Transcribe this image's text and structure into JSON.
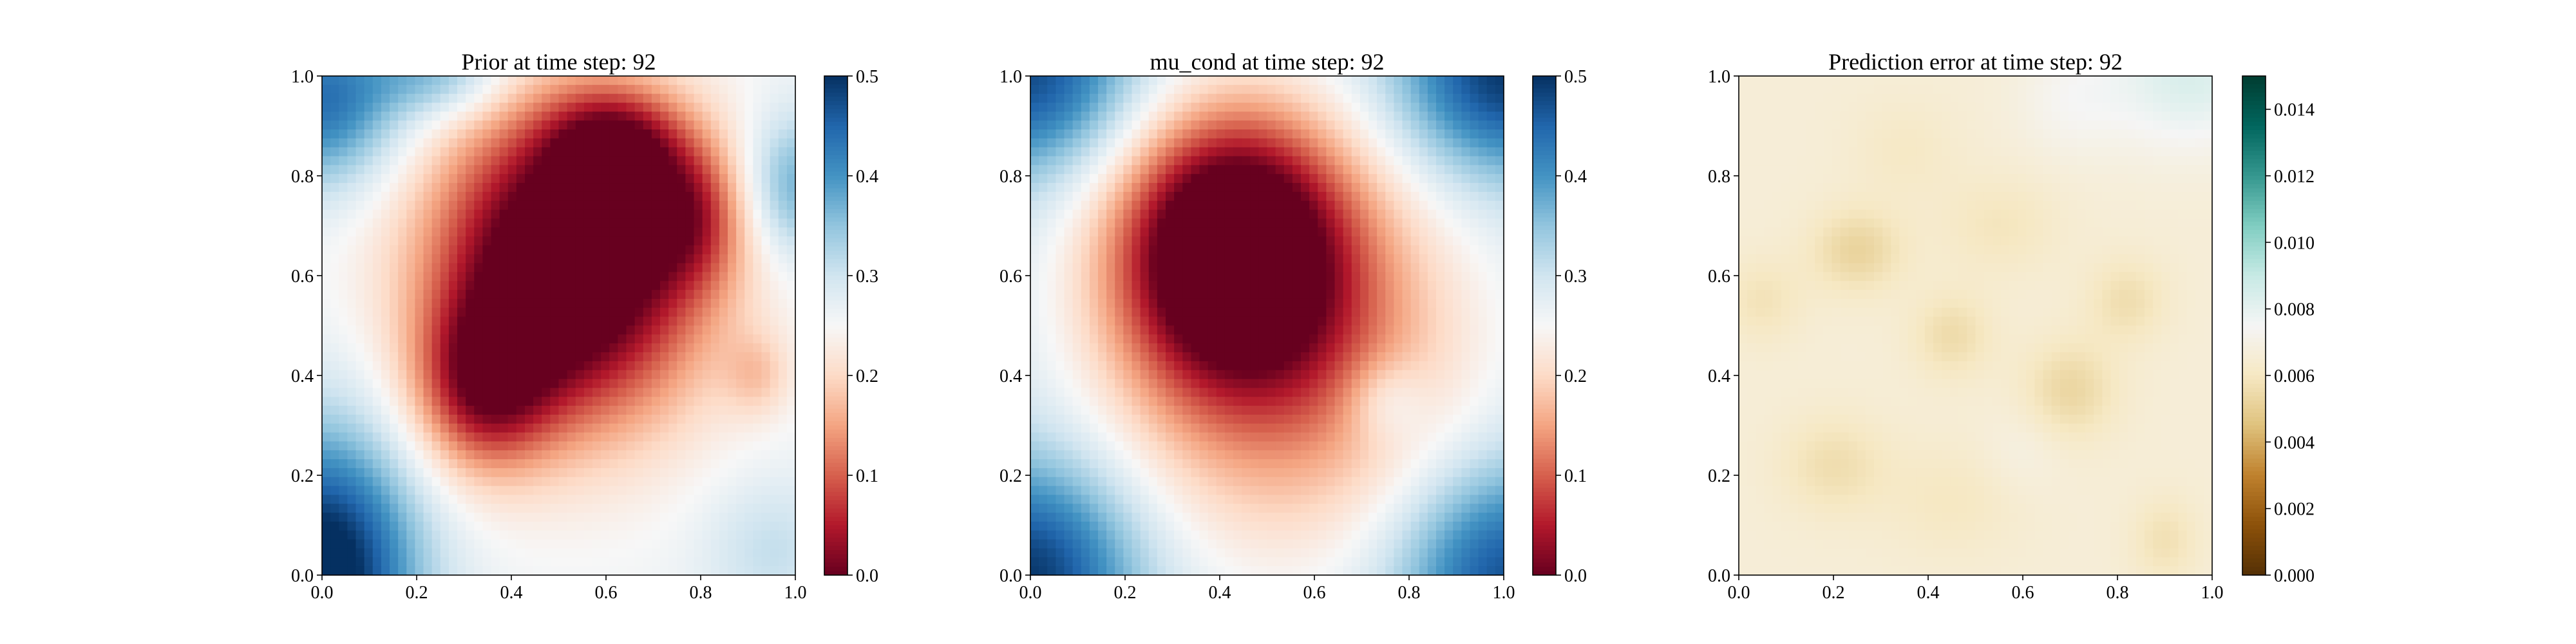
{
  "chart_data": [
    {
      "type": "heatmap",
      "title": "Prior at time step: 92",
      "xlim": [
        0.0,
        1.0
      ],
      "ylim": [
        0.0,
        1.0
      ],
      "x_ticks": [
        "0.0",
        "0.2",
        "0.4",
        "0.6",
        "0.8",
        "1.0"
      ],
      "y_ticks": [
        "0.0",
        "0.2",
        "0.4",
        "0.6",
        "0.8",
        "1.0"
      ],
      "colormap": "RdBu",
      "colorbar_range": [
        0.0,
        0.5
      ],
      "colorbar_ticks": [
        "0.0",
        "0.1",
        "0.2",
        "0.3",
        "0.4",
        "0.5"
      ],
      "field": {
        "base": 0.26,
        "blobs": [
          {
            "x": 0.52,
            "y": 0.62,
            "sx": 0.2,
            "sy": 0.22,
            "a": -0.36
          },
          {
            "x": 0.34,
            "y": 0.38,
            "sx": 0.1,
            "sy": 0.12,
            "a": -0.18
          },
          {
            "x": 0.62,
            "y": 0.86,
            "sx": 0.1,
            "sy": 0.08,
            "a": -0.16
          },
          {
            "x": 0.78,
            "y": 0.72,
            "sx": 0.08,
            "sy": 0.1,
            "a": -0.12
          },
          {
            "x": 0.92,
            "y": 0.4,
            "sx": 0.05,
            "sy": 0.06,
            "a": -0.06
          },
          {
            "x": 0.0,
            "y": 0.0,
            "sx": 0.14,
            "sy": 0.2,
            "a": 0.28
          },
          {
            "x": 0.0,
            "y": 0.95,
            "sx": 0.12,
            "sy": 0.12,
            "a": 0.18
          },
          {
            "x": 1.0,
            "y": 0.78,
            "sx": 0.08,
            "sy": 0.1,
            "a": 0.12
          },
          {
            "x": 0.25,
            "y": 1.0,
            "sx": 0.1,
            "sy": 0.06,
            "a": 0.1
          },
          {
            "x": 0.95,
            "y": 0.05,
            "sx": 0.1,
            "sy": 0.1,
            "a": 0.05
          }
        ]
      }
    },
    {
      "type": "heatmap",
      "title": "mu_cond at time step: 92",
      "xlim": [
        0.0,
        1.0
      ],
      "ylim": [
        0.0,
        1.0
      ],
      "x_ticks": [
        "0.0",
        "0.2",
        "0.4",
        "0.6",
        "0.8",
        "1.0"
      ],
      "y_ticks": [
        "0.0",
        "0.2",
        "0.4",
        "0.6",
        "0.8",
        "1.0"
      ],
      "colormap": "RdBu",
      "colorbar_range": [
        0.0,
        0.5
      ],
      "colorbar_ticks": [
        "0.0",
        "0.1",
        "0.2",
        "0.3",
        "0.4",
        "0.5"
      ],
      "field": {
        "base": 0.3,
        "blobs": [
          {
            "x": 0.42,
            "y": 0.66,
            "sx": 0.17,
            "sy": 0.19,
            "a": -0.33
          },
          {
            "x": 0.55,
            "y": 0.45,
            "sx": 0.28,
            "sy": 0.3,
            "a": -0.18
          },
          {
            "x": 0.75,
            "y": 0.35,
            "sx": 0.06,
            "sy": 0.06,
            "a": 0.06
          },
          {
            "x": 0.0,
            "y": 0.0,
            "sx": 0.16,
            "sy": 0.16,
            "a": 0.2
          },
          {
            "x": 1.0,
            "y": 0.0,
            "sx": 0.16,
            "sy": 0.16,
            "a": 0.18
          },
          {
            "x": 0.0,
            "y": 1.0,
            "sx": 0.16,
            "sy": 0.14,
            "a": 0.18
          },
          {
            "x": 1.0,
            "y": 1.0,
            "sx": 0.16,
            "sy": 0.14,
            "a": 0.2
          }
        ]
      }
    },
    {
      "type": "heatmap",
      "title": "Prediction error at time step: 92",
      "xlim": [
        0.0,
        1.0
      ],
      "ylim": [
        0.0,
        1.0
      ],
      "x_ticks": [
        "0.0",
        "0.2",
        "0.4",
        "0.6",
        "0.8",
        "1.0"
      ],
      "y_ticks": [
        "0.0",
        "0.2",
        "0.4",
        "0.6",
        "0.8",
        "1.0"
      ],
      "colormap": "BrBG",
      "colorbar_range": [
        0.0,
        0.015
      ],
      "colorbar_ticks": [
        "0.000",
        "0.002",
        "0.004",
        "0.006",
        "0.008",
        "0.010",
        "0.012",
        "0.014"
      ],
      "field": {
        "base": 0.0066,
        "blobs": [
          {
            "x": 0.25,
            "y": 0.65,
            "sx": 0.07,
            "sy": 0.06,
            "a": -0.0014
          },
          {
            "x": 0.45,
            "y": 0.48,
            "sx": 0.06,
            "sy": 0.06,
            "a": -0.0011
          },
          {
            "x": 0.7,
            "y": 0.37,
            "sx": 0.07,
            "sy": 0.07,
            "a": -0.0013
          },
          {
            "x": 0.82,
            "y": 0.55,
            "sx": 0.06,
            "sy": 0.06,
            "a": -0.001
          },
          {
            "x": 0.2,
            "y": 0.22,
            "sx": 0.08,
            "sy": 0.07,
            "a": -0.001
          },
          {
            "x": 0.9,
            "y": 0.07,
            "sx": 0.05,
            "sy": 0.06,
            "a": -0.0009
          },
          {
            "x": 0.05,
            "y": 0.55,
            "sx": 0.06,
            "sy": 0.06,
            "a": -0.0008
          },
          {
            "x": 0.55,
            "y": 0.7,
            "sx": 0.09,
            "sy": 0.07,
            "a": -0.0007
          },
          {
            "x": 0.45,
            "y": 0.15,
            "sx": 0.1,
            "sy": 0.08,
            "a": -0.0006
          },
          {
            "x": 0.35,
            "y": 0.85,
            "sx": 0.08,
            "sy": 0.07,
            "a": -0.0005
          },
          {
            "x": 0.95,
            "y": 1.0,
            "sx": 0.12,
            "sy": 0.1,
            "a": 0.0018
          },
          {
            "x": 0.7,
            "y": 0.95,
            "sx": 0.08,
            "sy": 0.08,
            "a": 0.0007
          },
          {
            "x": 0.6,
            "y": 0.25,
            "sx": 0.06,
            "sy": 0.06,
            "a": 0.0004
          }
        ]
      }
    }
  ]
}
